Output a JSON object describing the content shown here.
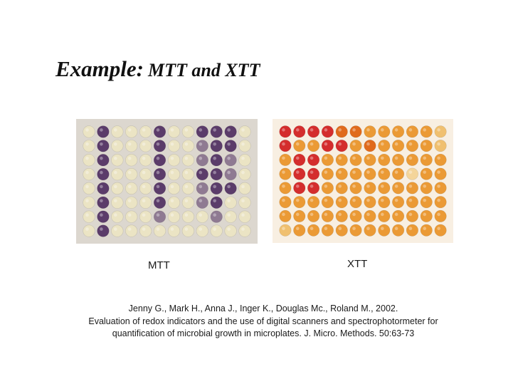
{
  "slide": {
    "title_lead": "Example:",
    "title_rest": "MTT and XTT"
  },
  "plates": [
    {
      "id": "mtt",
      "label": "MTT",
      "colors": {
        "background": "#dcd7cf",
        "well_light": "#ebe4c4",
        "well_pale": "#f1ecd6",
        "well_dark": "#5b3c6a",
        "well_mid": "#8f7a92"
      },
      "rows": [
        "LDLLLDLLDDDL",
        "LDLLLDLLMDDL",
        "LDLLLDLLMDML",
        "LDLLLDLLDDML",
        "LDLLLDLLMDDL",
        "LDLLLDLLMDLL",
        "LDLLLMLLLMLL",
        "LDLLLLLLLLLL"
      ]
    },
    {
      "id": "xtt",
      "label": "XTT",
      "colors": {
        "background": "#f8efe2",
        "well_red": "#d42d2d",
        "well_deep_orange": "#e06a1c",
        "well_orange": "#eb9a35",
        "well_light": "#f0c070",
        "well_pale": "#f4d59a"
      },
      "rows": [
        "RRRRDDOOOOOL",
        "ROORRODOOOOL",
        "ORROOOOOOOOO",
        "ORROOOOOOPOO",
        "ORROOOOOOOOO",
        "OOOOOOOOOOOO",
        "OOOOOOOOOOOO",
        "LOOOOOOOOOOO"
      ]
    }
  ],
  "citation": {
    "line1": "Jenny G., Mark H., Anna J., Inger K., Douglas Mc., Roland M., 2002.",
    "line2": "Evaluation of redox indicators and the use of digital scanners and spectrophotormeter for",
    "line3": "quantification of microbial growth in microplates. J. Micro. Methods. 50:63-73"
  }
}
